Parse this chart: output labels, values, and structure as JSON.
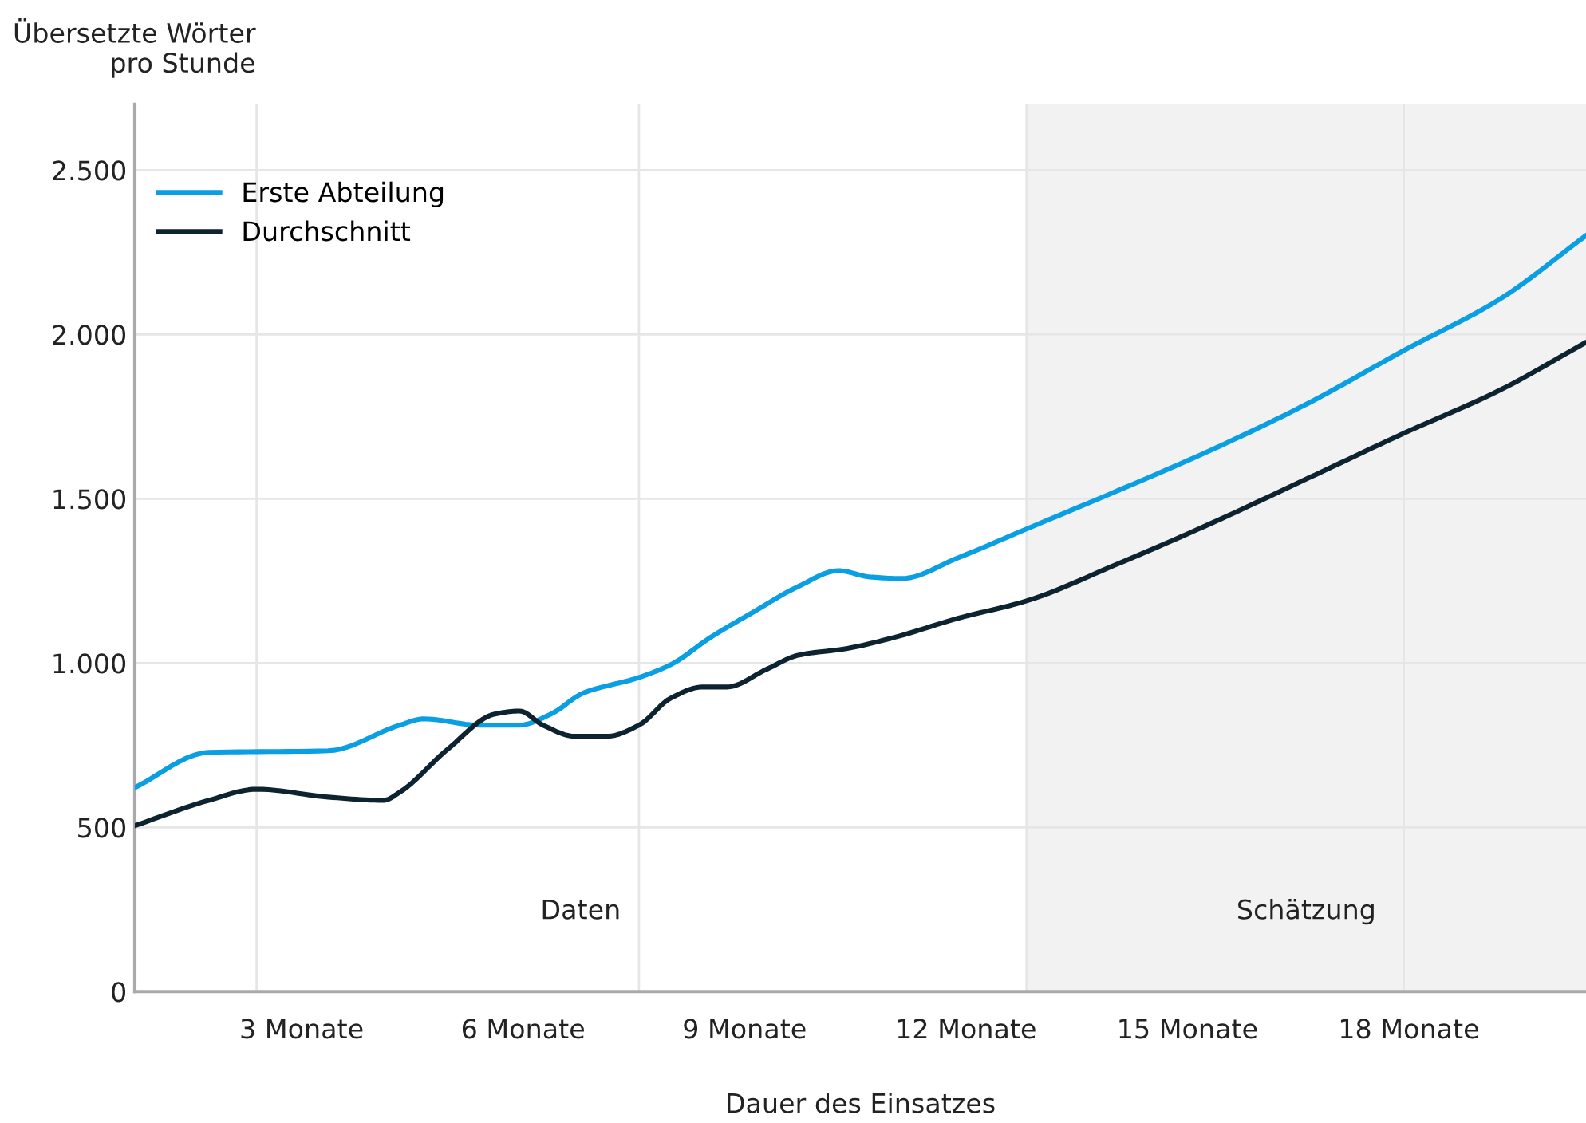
{
  "chart_data": {
    "type": "line",
    "ylabel": "Übersetzte Wörter\npro Stunde",
    "xlabel": "Dauer des Einsatzes",
    "xlim": [
      0.74,
      20.4
    ],
    "xticks": [
      {
        "value": 3,
        "label": "3 Monate"
      },
      {
        "value": 6,
        "label": "6 Monate"
      },
      {
        "value": 9,
        "label": "9 Monate"
      },
      {
        "value": 12,
        "label": "12 Monate"
      },
      {
        "value": 15,
        "label": "15 Monate"
      },
      {
        "value": 18,
        "label": "18 Monate"
      }
    ],
    "ylim": [
      0,
      2700
    ],
    "yticks": [
      0,
      500,
      {
        "value": 1000,
        "label": "1.000"
      },
      {
        "value": 1500,
        "label": "1.500"
      },
      {
        "value": 2000,
        "label": "2.000"
      },
      {
        "value": 2500,
        "label": "2.500"
      }
    ],
    "grid": "y",
    "legend": "top left",
    "line_style": "solid",
    "marker": "none",
    "annotations": [
      "Daten"
    ],
    "bands": [
      {
        "axis": "x",
        "from": 12.82,
        "to": 20.4,
        "label": "Schätzung",
        "color": "#f2f2f2"
      }
    ],
    "ref_lines": [
      {
        "axis": "x",
        "value": 2.39,
        "color": "#e6e6e6"
      },
      {
        "axis": "x",
        "value": 7.57,
        "color": "#e6e6e6"
      },
      {
        "axis": "x",
        "value": 12.82,
        "color": "#e6e6e6"
      },
      {
        "axis": "x",
        "value": 17.93,
        "color": "#e6e6e6"
      }
    ],
    "series": [
      {
        "name": "Erste Abteilung",
        "color": "#0a9fe3",
        "x": [
          0.74,
          1.74,
          3.36,
          4.33,
          4.65,
          5.41,
          5.95,
          6.38,
          6.81,
          7.57,
          8.0,
          8.54,
          9.08,
          9.73,
          10.27,
          10.7,
          11.13,
          11.89,
          12.82,
          14.05,
          15.34,
          16.64,
          17.93,
          19.23,
          20.4
        ],
        "values": [
          621,
          728,
          733,
          811,
          830,
          811,
          811,
          845,
          908,
          956,
          995,
          1078,
          1150,
          1233,
          1281,
          1262,
          1257,
          1320,
          1408,
          1524,
          1650,
          1791,
          1951,
          2107,
          2301
        ]
      },
      {
        "name": "Durchschnitt",
        "color": "#0d2430",
        "x": [
          0.74,
          1.74,
          2.39,
          3.36,
          4.11,
          4.33,
          4.98,
          5.62,
          5.95,
          6.27,
          6.7,
          7.14,
          7.57,
          8.0,
          8.43,
          8.76,
          9.3,
          9.73,
          10.38,
          11.03,
          11.89,
          12.82,
          14.05,
          15.34,
          16.64,
          17.93,
          19.23,
          20.4
        ],
        "values": [
          505,
          582,
          616,
          592,
          582,
          607,
          738,
          845,
          854,
          811,
          777,
          777,
          811,
          893,
          927,
          927,
          981,
          1024,
          1044,
          1078,
          1136,
          1189,
          1301,
          1427,
          1563,
          1699,
          1830,
          1976
        ]
      }
    ]
  }
}
